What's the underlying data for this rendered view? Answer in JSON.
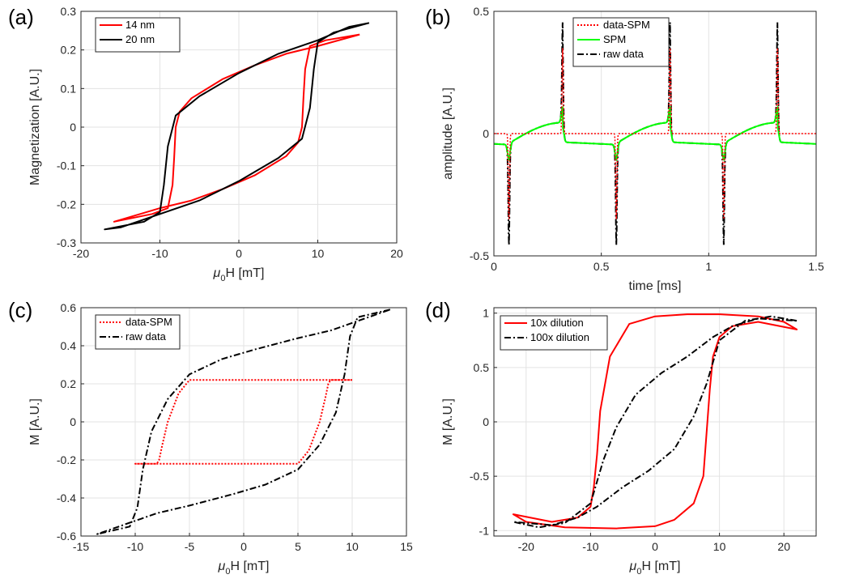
{
  "chart_data": [
    {
      "panel_label": "(a)",
      "type": "line",
      "xlabel_sym": "μ",
      "xlabel_sub": "0",
      "xlabel_rest": "H [mT]",
      "ylabel": "Magnetization [A.U.]",
      "xlim": [
        -20,
        20
      ],
      "ylim": [
        -0.3,
        0.3
      ],
      "xticks": [
        -20,
        -10,
        0,
        10,
        20
      ],
      "xtick_labels": [
        "-20",
        "-10",
        "0",
        "10",
        "20"
      ],
      "yticks": [
        -0.3,
        -0.2,
        -0.1,
        0,
        0.1,
        0.2,
        0.3
      ],
      "ytick_labels": [
        "-0.3",
        "-0.2",
        "-0.1",
        "0",
        "0.1",
        "0.2",
        "0.3"
      ],
      "grid": true,
      "legend_position": "top-left",
      "series": [
        {
          "name": "14 nm",
          "color": "#ff0000",
          "style": "solid",
          "x": [
            15.3,
            10,
            6,
            2,
            -2,
            -6,
            -7.5,
            -8,
            -8.2,
            -8.4,
            -9,
            -11,
            -15.8,
            -10,
            -6,
            -2,
            2,
            6,
            7.5,
            8,
            8.2,
            8.4,
            9,
            11,
            15.3
          ],
          "y": [
            0.24,
            0.21,
            0.19,
            0.16,
            0.125,
            0.075,
            0.04,
            0.0,
            -0.08,
            -0.15,
            -0.21,
            -0.225,
            -0.245,
            -0.21,
            -0.19,
            -0.16,
            -0.125,
            -0.075,
            -0.04,
            0.0,
            0.08,
            0.15,
            0.21,
            0.225,
            0.24
          ]
        },
        {
          "name": "20 nm",
          "color": "#000000",
          "style": "solid",
          "x": [
            16.5,
            14,
            10,
            5,
            0,
            -5,
            -8,
            -9,
            -9.5,
            -10,
            -12,
            -17,
            -15,
            -10,
            -5,
            0,
            5,
            8,
            9,
            9.5,
            10,
            12,
            16.5
          ],
          "y": [
            0.27,
            0.26,
            0.225,
            0.19,
            0.14,
            0.08,
            0.03,
            -0.05,
            -0.15,
            -0.22,
            -0.245,
            -0.265,
            -0.26,
            -0.225,
            -0.19,
            -0.14,
            -0.08,
            -0.03,
            0.05,
            0.15,
            0.22,
            0.245,
            0.27
          ]
        }
      ]
    },
    {
      "panel_label": "(b)",
      "type": "line",
      "xlabel": "time [ms]",
      "ylabel": "amplitude [A.U.]",
      "xlim": [
        0,
        1.5
      ],
      "ylim": [
        -0.5,
        0.5
      ],
      "xticks": [
        0,
        0.5,
        1,
        1.5
      ],
      "xtick_labels": [
        "0",
        "0.5",
        "1",
        "1.5"
      ],
      "yticks": [
        -0.5,
        0,
        0.5
      ],
      "ytick_labels": [
        "-0.5",
        "0",
        "0.5"
      ],
      "grid": true,
      "legend_position": "top-center",
      "pulse_times_positive": [
        0.32,
        0.82,
        1.32
      ],
      "pulse_times_negative": [
        0.07,
        0.57,
        1.07
      ],
      "series": [
        {
          "name": "data-SPM",
          "color": "#ff0000",
          "style": "dotted",
          "description_peak": 0.44
        },
        {
          "name": "SPM",
          "color": "#00ff00",
          "style": "solid",
          "description_peak": 0.09
        },
        {
          "name": "raw data",
          "color": "#000000",
          "style": "dashdot",
          "description_peak": 0.44
        }
      ]
    },
    {
      "panel_label": "(c)",
      "type": "line",
      "xlabel_sym": "μ",
      "xlabel_sub": "0",
      "xlabel_rest": "H [mT]",
      "ylabel": "M [A.U.]",
      "xlim": [
        -15,
        15
      ],
      "ylim": [
        -0.6,
        0.6
      ],
      "xticks": [
        -15,
        -10,
        -5,
        0,
        5,
        10,
        15
      ],
      "xtick_labels": [
        "-15",
        "-10",
        "-5",
        "0",
        "5",
        "10",
        "15"
      ],
      "yticks": [
        -0.6,
        -0.4,
        -0.2,
        0,
        0.2,
        0.4,
        0.6
      ],
      "ytick_labels": [
        "-0.6",
        "-0.4",
        "-0.2",
        "0",
        "0.2",
        "0.4",
        "0.6"
      ],
      "grid": true,
      "legend_position": "top-left",
      "series": [
        {
          "name": "data-SPM",
          "color": "#ff0000",
          "style": "dotted",
          "x": [
            10,
            8,
            7.8,
            7.5,
            7,
            6,
            5,
            0,
            -5,
            -10,
            -8,
            -7.8,
            -7.5,
            -7,
            -6,
            -5,
            0,
            5,
            10
          ],
          "y": [
            0.22,
            0.22,
            0.2,
            0.12,
            0.0,
            -0.15,
            -0.22,
            -0.22,
            -0.22,
            -0.22,
            -0.22,
            -0.2,
            -0.12,
            0.0,
            0.15,
            0.22,
            0.22,
            0.22,
            0.22
          ]
        },
        {
          "name": "raw data",
          "color": "#000000",
          "style": "dashdot",
          "x": [
            13.5,
            10.5,
            9.8,
            9.3,
            8.5,
            7,
            5,
            2,
            -1,
            -5,
            -8,
            -9.5,
            -10.5,
            -12,
            -13.5,
            -10.5,
            -9.8,
            -9.3,
            -8.5,
            -7,
            -5,
            -2,
            1,
            5,
            8,
            9.5,
            10.5,
            12,
            13.5
          ],
          "y": [
            0.59,
            0.55,
            0.45,
            0.25,
            0.05,
            -0.12,
            -0.25,
            -0.33,
            -0.38,
            -0.44,
            -0.48,
            -0.51,
            -0.53,
            -0.56,
            -0.59,
            -0.55,
            -0.45,
            -0.25,
            -0.05,
            0.12,
            0.25,
            0.33,
            0.38,
            0.44,
            0.48,
            0.51,
            0.53,
            0.56,
            0.59
          ]
        }
      ]
    },
    {
      "panel_label": "(d)",
      "type": "line",
      "xlabel_sym": "μ",
      "xlabel_sub": "0",
      "xlabel_rest": "H [mT]",
      "ylabel": "M [A.U.]",
      "xlim": [
        -25,
        25
      ],
      "ylim": [
        -1.05,
        1.05
      ],
      "xticks": [
        -20,
        -10,
        0,
        10,
        20
      ],
      "xtick_labels": [
        "-20",
        "-10",
        "0",
        "10",
        "20"
      ],
      "yticks": [
        -1,
        -0.5,
        0,
        0.5,
        1
      ],
      "ytick_labels": [
        "-1",
        "-0.5",
        "0",
        "0.5",
        "1"
      ],
      "grid": true,
      "legend_position": "top-left",
      "series": [
        {
          "name": "10x dilution",
          "color": "#ff0000",
          "style": "solid",
          "x": [
            0,
            3,
            6,
            7.5,
            8,
            8.5,
            9,
            10,
            12,
            16,
            22,
            20,
            16,
            10,
            5,
            0,
            -4,
            -7,
            -8.5,
            -9,
            -9.5,
            -10,
            -12,
            -16,
            -22,
            -20,
            -14,
            -6,
            0
          ],
          "y": [
            -0.96,
            -0.9,
            -0.75,
            -0.5,
            -0.1,
            0.3,
            0.6,
            0.78,
            0.88,
            0.92,
            0.85,
            0.92,
            0.97,
            0.99,
            0.99,
            0.97,
            0.9,
            0.6,
            0.1,
            -0.3,
            -0.6,
            -0.78,
            -0.88,
            -0.92,
            -0.85,
            -0.92,
            -0.97,
            -0.98,
            -0.96
          ]
        },
        {
          "name": "100x dilution",
          "color": "#000000",
          "style": "dashdot",
          "x": [
            22,
            18,
            14,
            10,
            8,
            6,
            3,
            -1,
            -5,
            -9,
            -12,
            -16,
            -22,
            -18,
            -14,
            -10,
            -8,
            -6,
            -3,
            1,
            5,
            9,
            12,
            16,
            22
          ],
          "y": [
            0.93,
            0.97,
            0.93,
            0.75,
            0.35,
            0.05,
            -0.25,
            -0.45,
            -0.6,
            -0.78,
            -0.88,
            -0.95,
            -0.92,
            -0.97,
            -0.93,
            -0.75,
            -0.35,
            -0.05,
            0.25,
            0.45,
            0.6,
            0.78,
            0.88,
            0.95,
            0.93
          ]
        }
      ]
    }
  ]
}
